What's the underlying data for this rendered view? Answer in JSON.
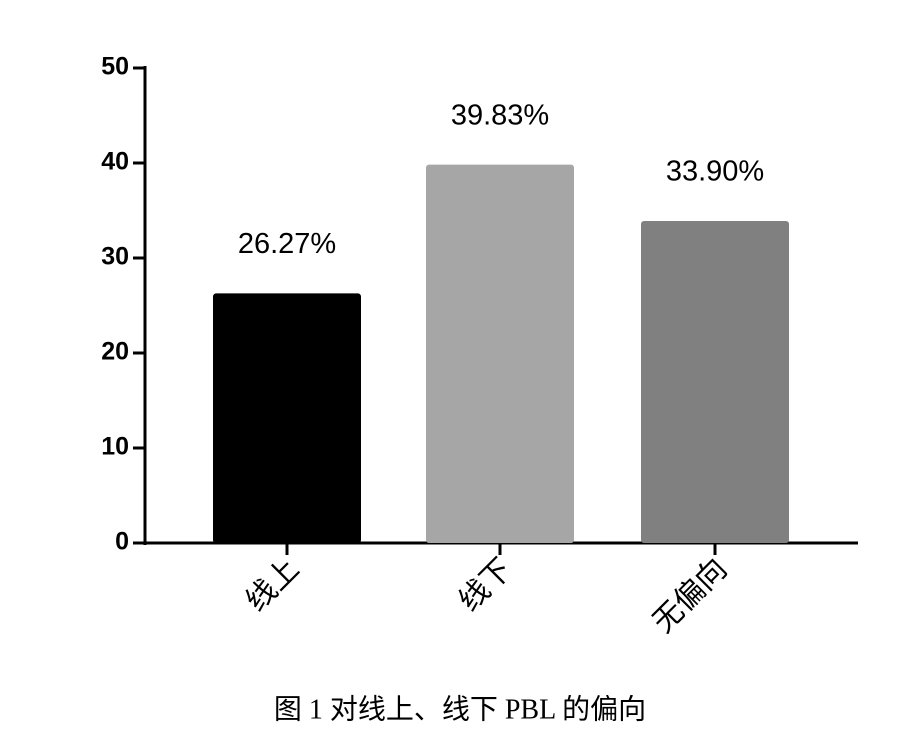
{
  "chart_data": {
    "type": "bar",
    "title": "图 1 对线上、线下 PBL 的偏向",
    "categories": [
      "线上",
      "线下",
      "无偏向"
    ],
    "values": [
      26.27,
      39.83,
      33.9
    ],
    "value_labels": [
      "26.27%",
      "39.83%",
      "33.90%"
    ],
    "colors": [
      "#000000",
      "#a6a6a6",
      "#808080"
    ],
    "ylim": [
      0,
      50
    ],
    "yticks": [
      0,
      10,
      20,
      30,
      40,
      50
    ],
    "grid": false
  }
}
